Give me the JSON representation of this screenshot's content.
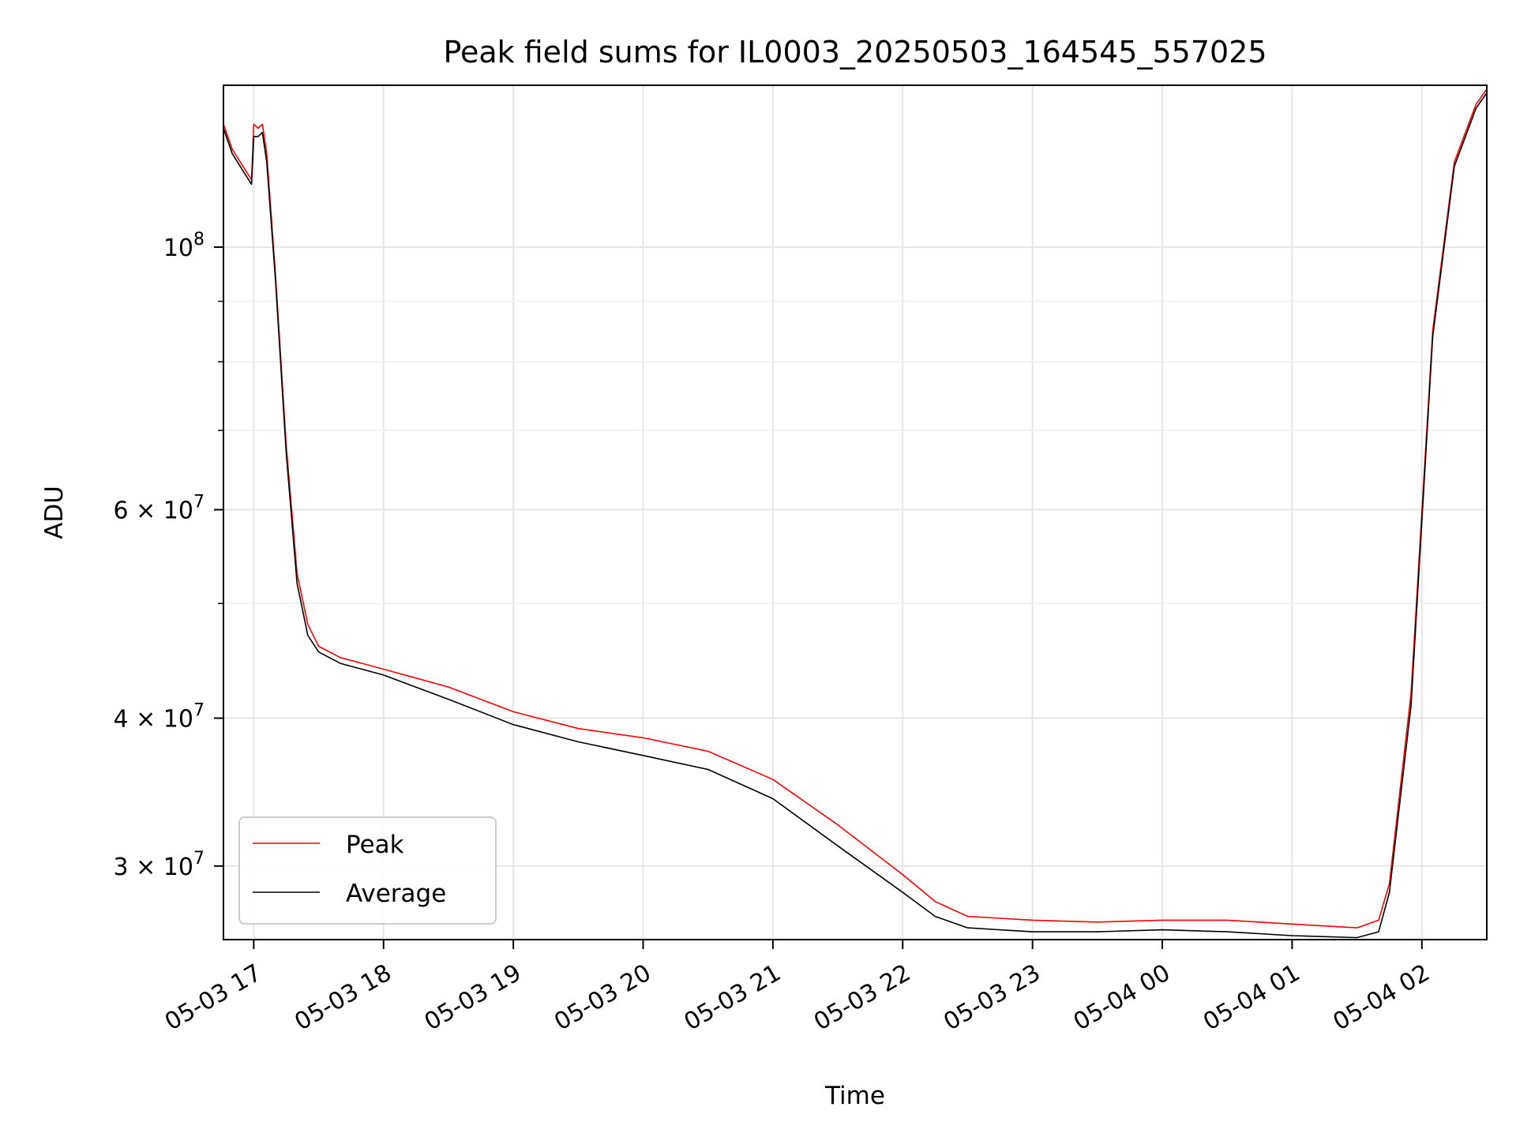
{
  "chart_data": {
    "type": "line",
    "title": "Peak field sums for IL0003_20250503_164545_557025",
    "xlabel": "Time",
    "ylabel": "ADU",
    "yscale": "log",
    "xlim": [
      "05-03 16:46",
      "05-04 02:30"
    ],
    "ylim": [
      26000000,
      137000000
    ],
    "grid": true,
    "legend_position": "lower-left",
    "x_ticks": [
      {
        "value": "05-03 17:00",
        "label": "05-03 17"
      },
      {
        "value": "05-03 18:00",
        "label": "05-03 18"
      },
      {
        "value": "05-03 19:00",
        "label": "05-03 19"
      },
      {
        "value": "05-03 20:00",
        "label": "05-03 20"
      },
      {
        "value": "05-03 21:00",
        "label": "05-03 21"
      },
      {
        "value": "05-03 22:00",
        "label": "05-03 22"
      },
      {
        "value": "05-03 23:00",
        "label": "05-03 23"
      },
      {
        "value": "05-04 00:00",
        "label": "05-04 00"
      },
      {
        "value": "05-04 01:00",
        "label": "05-04 01"
      },
      {
        "value": "05-04 02:00",
        "label": "05-04 02"
      }
    ],
    "y_ticks": [
      {
        "value": 30000000,
        "mantissa": "3",
        "exp": "7"
      },
      {
        "value": 40000000,
        "mantissa": "4",
        "exp": "7"
      },
      {
        "value": 60000000,
        "mantissa": "6",
        "exp": "7"
      },
      {
        "value": 100000000,
        "mantissa": "",
        "exp": "8"
      }
    ],
    "y_minor_ticks": [
      50000000,
      70000000,
      80000000,
      90000000
    ],
    "series": [
      {
        "name": "Peak",
        "color": "#ff0000",
        "x": [
          "05-03 16:46",
          "05-03 16:50",
          "05-03 16:55",
          "05-03 16:59",
          "05-03 17:00",
          "05-03 17:02",
          "05-03 17:04",
          "05-03 17:06",
          "05-03 17:10",
          "05-03 17:15",
          "05-03 17:20",
          "05-03 17:25",
          "05-03 17:30",
          "05-03 17:40",
          "05-03 17:50",
          "05-03 18:00",
          "05-03 18:30",
          "05-03 19:00",
          "05-03 19:30",
          "05-03 20:00",
          "05-03 20:30",
          "05-03 21:00",
          "05-03 21:30",
          "05-03 22:00",
          "05-03 22:15",
          "05-03 22:30",
          "05-03 23:00",
          "05-03 23:30",
          "05-04 00:00",
          "05-04 00:30",
          "05-04 01:00",
          "05-04 01:30",
          "05-04 01:40",
          "05-04 01:45",
          "05-04 01:55",
          "05-04 02:05",
          "05-04 02:15",
          "05-04 02:25",
          "05-04 02:30"
        ],
        "values": [
          127000000,
          121000000,
          117000000,
          114000000,
          127000000,
          126000000,
          127000000,
          120000000,
          95000000,
          68000000,
          53000000,
          48000000,
          46000000,
          45000000,
          44500000,
          44000000,
          42500000,
          40500000,
          39200000,
          38500000,
          37500000,
          35500000,
          32500000,
          29500000,
          28000000,
          27200000,
          27000000,
          26900000,
          27000000,
          27000000,
          26800000,
          26600000,
          27000000,
          29000000,
          42000000,
          85000000,
          118000000,
          132000000,
          136000000
        ]
      },
      {
        "name": "Average",
        "color": "#000000",
        "x": [
          "05-03 16:46",
          "05-03 16:50",
          "05-03 16:55",
          "05-03 16:59",
          "05-03 17:00",
          "05-03 17:02",
          "05-03 17:04",
          "05-03 17:06",
          "05-03 17:10",
          "05-03 17:15",
          "05-03 17:20",
          "05-03 17:25",
          "05-03 17:30",
          "05-03 17:40",
          "05-03 17:50",
          "05-03 18:00",
          "05-03 18:30",
          "05-03 19:00",
          "05-03 19:30",
          "05-03 20:00",
          "05-03 20:30",
          "05-03 21:00",
          "05-03 21:30",
          "05-03 22:00",
          "05-03 22:15",
          "05-03 22:30",
          "05-03 23:00",
          "05-03 23:30",
          "05-04 00:00",
          "05-04 00:30",
          "05-04 01:00",
          "05-04 01:30",
          "05-04 01:40",
          "05-04 01:45",
          "05-04 01:55",
          "05-04 02:05",
          "05-04 02:15",
          "05-04 02:25",
          "05-04 02:30"
        ],
        "values": [
          126000000,
          120000000,
          116000000,
          113000000,
          124000000,
          124000000,
          125000000,
          118000000,
          94000000,
          67000000,
          52000000,
          47000000,
          45500000,
          44500000,
          44000000,
          43500000,
          41500000,
          39500000,
          38200000,
          37200000,
          36200000,
          34200000,
          31200000,
          28500000,
          27200000,
          26600000,
          26400000,
          26400000,
          26500000,
          26400000,
          26200000,
          26100000,
          26400000,
          28500000,
          41000000,
          84000000,
          117000000,
          131000000,
          135000000
        ]
      }
    ]
  }
}
